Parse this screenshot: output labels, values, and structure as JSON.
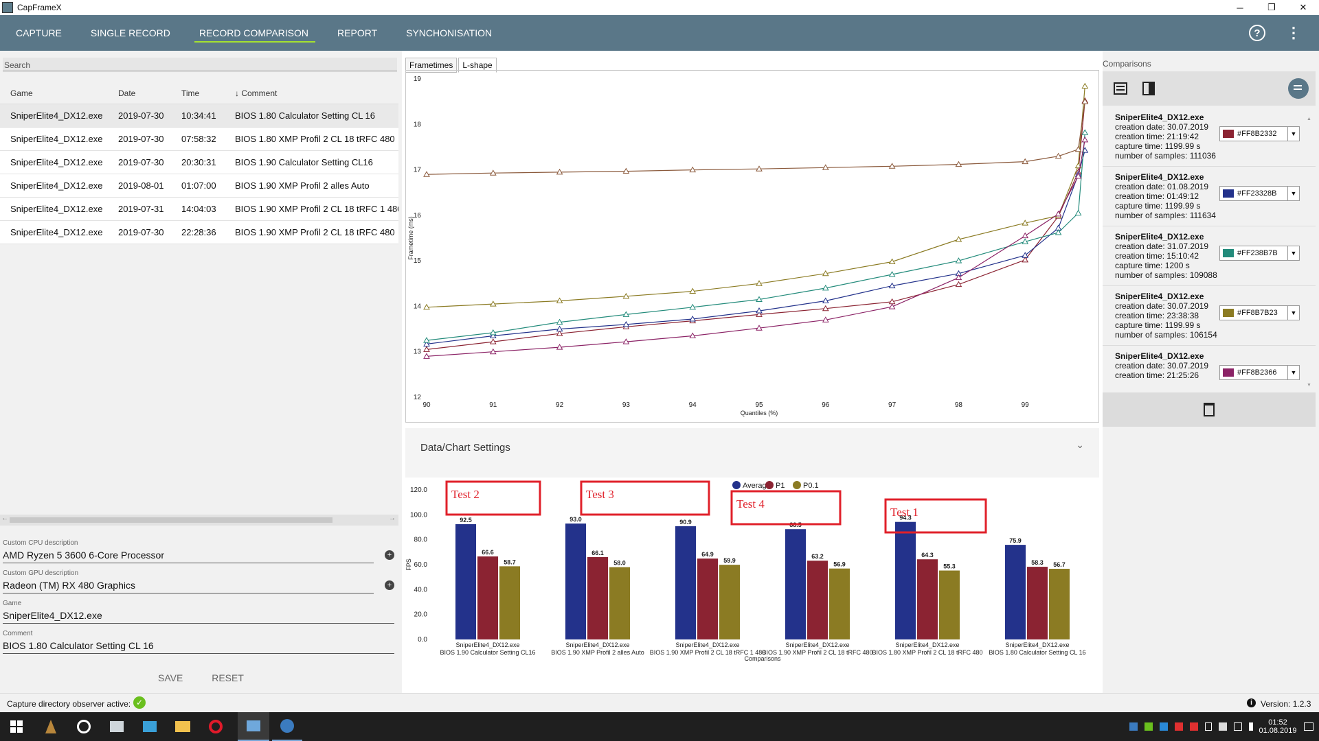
{
  "window": {
    "title": "CapFrameX",
    "minimize": "─",
    "restore": "❐",
    "close": "✕"
  },
  "nav": {
    "tabs": [
      "CAPTURE",
      "SINGLE RECORD",
      "RECORD COMPARISON",
      "REPORT",
      "SYNCHONISATION"
    ],
    "active": 2,
    "help_icon": "?",
    "menu_icon": "⋮"
  },
  "left": {
    "search_placeholder": "Search",
    "columns": {
      "game": "Game",
      "date": "Date",
      "time": "Time",
      "comment": "Comment",
      "sort_arrow": "↓"
    },
    "rows": [
      {
        "game": "SniperElite4_DX12.exe",
        "date": "2019-07-30",
        "time": "10:34:41",
        "comment": "BIOS 1.80 Calculator Setting CL 16"
      },
      {
        "game": "SniperElite4_DX12.exe",
        "date": "2019-07-30",
        "time": "07:58:32",
        "comment": "BIOS 1.80 XMP Profil 2 CL 18 tRFC 480"
      },
      {
        "game": "SniperElite4_DX12.exe",
        "date": "2019-07-30",
        "time": "20:30:31",
        "comment": "BIOS 1.90 Calculator Setting CL16"
      },
      {
        "game": "SniperElite4_DX12.exe",
        "date": "2019-08-01",
        "time": "01:07:00",
        "comment": "BIOS 1.90 XMP Profil 2 alles Auto"
      },
      {
        "game": "SniperElite4_DX12.exe",
        "date": "2019-07-31",
        "time": "14:04:03",
        "comment": "BIOS 1.90 XMP Profil 2 CL 18 tRFC 1 480"
      },
      {
        "game": "SniperElite4_DX12.exe",
        "date": "2019-07-30",
        "time": "22:28:36",
        "comment": "BIOS 1.90 XMP Profil 2 CL 18 tRFC 480"
      }
    ],
    "scroll_left": "←",
    "scroll_right": "→",
    "cpu_label": "Custom CPU description",
    "cpu_value": "AMD Ryzen 5 3600 6-Core Processor",
    "gpu_label": "Custom GPU description",
    "gpu_value": "Radeon (TM) RX 480 Graphics",
    "add_icon": "+",
    "game_label": "Game",
    "game_value": "SniperElite4_DX12.exe",
    "comment_label": "Comment",
    "comment_value": "BIOS 1.80 Calculator Setting CL 16",
    "save": "SAVE",
    "reset": "RESET"
  },
  "center": {
    "tabs": [
      "Frametimes",
      "L-shape"
    ],
    "active_tab": 1,
    "settings_title": "Data/Chart Settings",
    "settings_chevron": "⌄"
  },
  "chart_data": [
    {
      "type": "line",
      "xlabel": "Quantiles (%)",
      "ylabel": "Frametime (ms)",
      "xlim": [
        90,
        100
      ],
      "ylim": [
        12,
        19
      ],
      "x_ticks": [
        90,
        91,
        92,
        93,
        94,
        95,
        96,
        97,
        98,
        99
      ],
      "y_ticks": [
        12,
        13,
        14,
        15,
        16,
        17,
        18,
        19
      ],
      "x": [
        90,
        91,
        92,
        93,
        94,
        95,
        96,
        97,
        98,
        99,
        99.5,
        99.8,
        99.9
      ],
      "series": [
        {
          "color": "#8B2332",
          "values": [
            13.05,
            13.22,
            13.4,
            13.55,
            13.68,
            13.82,
            13.95,
            14.1,
            14.48,
            15.02,
            15.98,
            16.95,
            18.52
          ]
        },
        {
          "color": "#23328B",
          "values": [
            13.17,
            13.35,
            13.5,
            13.6,
            13.72,
            13.9,
            14.12,
            14.45,
            14.72,
            15.12,
            15.72,
            16.9,
            17.43
          ]
        },
        {
          "color": "#238B7B",
          "values": [
            13.25,
            13.42,
            13.65,
            13.82,
            13.98,
            14.15,
            14.4,
            14.7,
            15.0,
            15.42,
            15.62,
            16.05,
            17.82
          ]
        },
        {
          "color": "#8B7B23",
          "values": [
            13.98,
            14.05,
            14.12,
            14.22,
            14.33,
            14.5,
            14.72,
            14.98,
            15.47,
            15.83,
            15.99,
            17.09,
            18.84
          ]
        },
        {
          "color": "#8B2366",
          "values": [
            12.9,
            13.0,
            13.1,
            13.22,
            13.35,
            13.52,
            13.7,
            13.99,
            14.63,
            15.55,
            16.03,
            16.86,
            17.66
          ]
        },
        {
          "color": "#8B5A3C",
          "values": [
            16.9,
            16.93,
            16.95,
            16.97,
            17.0,
            17.02,
            17.05,
            17.08,
            17.12,
            17.18,
            17.3,
            17.45,
            18.5
          ]
        }
      ]
    },
    {
      "type": "bar",
      "xlabel": "Comparisons",
      "ylabel": "FPS",
      "ylim": [
        0,
        120
      ],
      "y_ticks": [
        0,
        20,
        40,
        60,
        80,
        100,
        120
      ],
      "y_tick_labels": [
        "0.0",
        "20.0",
        "40.0",
        "60.0",
        "80.0",
        "100.0",
        "120.0"
      ],
      "legend_position": "top",
      "categories": [
        {
          "game": "SniperElite4_DX12.exe",
          "comment": "BIOS 1.90 Calculator Setting CL16"
        },
        {
          "game": "SniperElite4_DX12.exe",
          "comment": "BIOS 1.90 XMP Profil 2 alles Auto"
        },
        {
          "game": "SniperElite4_DX12.exe",
          "comment": "BIOS 1.90 XMP Profil 2 CL 18 tRFC 1 480"
        },
        {
          "game": "SniperElite4_DX12.exe",
          "comment": "BIOS 1.90 XMP Profil 2 CL 18 tRFC 480"
        },
        {
          "game": "SniperElite4_DX12.exe",
          "comment": "BIOS 1.80 XMP Profil 2 CL 18 tRFC 480"
        },
        {
          "game": "SniperElite4_DX12.exe",
          "comment": "BIOS 1.80 Calculator Setting CL 16"
        }
      ],
      "series": [
        {
          "name": "Average",
          "color": "#23328B",
          "values": [
            92.5,
            93.0,
            90.9,
            88.5,
            94.3,
            75.9
          ],
          "labels": [
            "92.5",
            "93.0",
            "90.9",
            "88.5",
            "94.3",
            "75.9"
          ]
        },
        {
          "name": "P1",
          "color": "#8B2332",
          "values": [
            66.6,
            66.1,
            64.9,
            63.2,
            64.3,
            58.3
          ],
          "labels": [
            "66.6",
            "66.1",
            "64.9",
            "63.2",
            "64.3",
            "58.3"
          ]
        },
        {
          "name": "P0.1",
          "color": "#8B7B23",
          "values": [
            58.7,
            58.0,
            59.9,
            56.9,
            55.3,
            56.7
          ],
          "labels": [
            "58.7",
            "58.0",
            "59.9",
            "56.9",
            "55.3",
            "56.7"
          ]
        }
      ],
      "annotations": [
        {
          "text": "Test 2",
          "category_index": 0
        },
        {
          "text": "Test 3",
          "category_index": 1
        },
        {
          "text": "Test 4",
          "category_index": 2
        },
        {
          "text": "Test 1",
          "category_index": 3
        }
      ],
      "annotation_color": "#E0202A"
    }
  ],
  "right": {
    "header": "Comparisons",
    "list_icon": "list-icon",
    "swap_icon": "swap-icon",
    "clear_icon": "clear-list-icon",
    "scroll_up": "▲",
    "scroll_down": "▼",
    "dropdown_arrow": "▼",
    "entries": [
      {
        "game": "SniperElite4_DX12.exe",
        "date": "creation date: 30.07.2019",
        "time": "creation time: 21:19:42",
        "capture": "capture time: 1199.99 s",
        "samples": "number of samples: 111036",
        "color_code": "#FF8B2332",
        "color": "#8B2332"
      },
      {
        "game": "SniperElite4_DX12.exe",
        "date": "creation date: 01.08.2019",
        "time": "creation time: 01:49:12",
        "capture": "capture time: 1199.99 s",
        "samples": "number of samples: 111634",
        "color_code": "#FF23328B",
        "color": "#23328B"
      },
      {
        "game": "SniperElite4_DX12.exe",
        "date": "creation date: 31.07.2019",
        "time": "creation time: 15:10:42",
        "capture": "capture time: 1200 s",
        "samples": "number of samples: 109088",
        "color_code": "#FF238B7B",
        "color": "#238B7B"
      },
      {
        "game": "SniperElite4_DX12.exe",
        "date": "creation date: 30.07.2019",
        "time": "creation time: 23:38:38",
        "capture": "capture time: 1199.99 s",
        "samples": "number of samples: 106154",
        "color_code": "#FF8B7B23",
        "color": "#8B7B23"
      },
      {
        "game": "SniperElite4_DX12.exe",
        "date": "creation date: 30.07.2019",
        "time": "creation time: 21:25:26",
        "capture": "",
        "samples": "",
        "color_code": "#FF8B2366",
        "color": "#8B2366"
      }
    ],
    "delete_icon": "trash-icon"
  },
  "status": {
    "observer": "Capture directory observer active:",
    "check_icon": "✓",
    "info_icon": "i",
    "version": "Version: 1.2.3"
  },
  "taskbar": {
    "time": "01:52",
    "date": "01.08.2019"
  }
}
